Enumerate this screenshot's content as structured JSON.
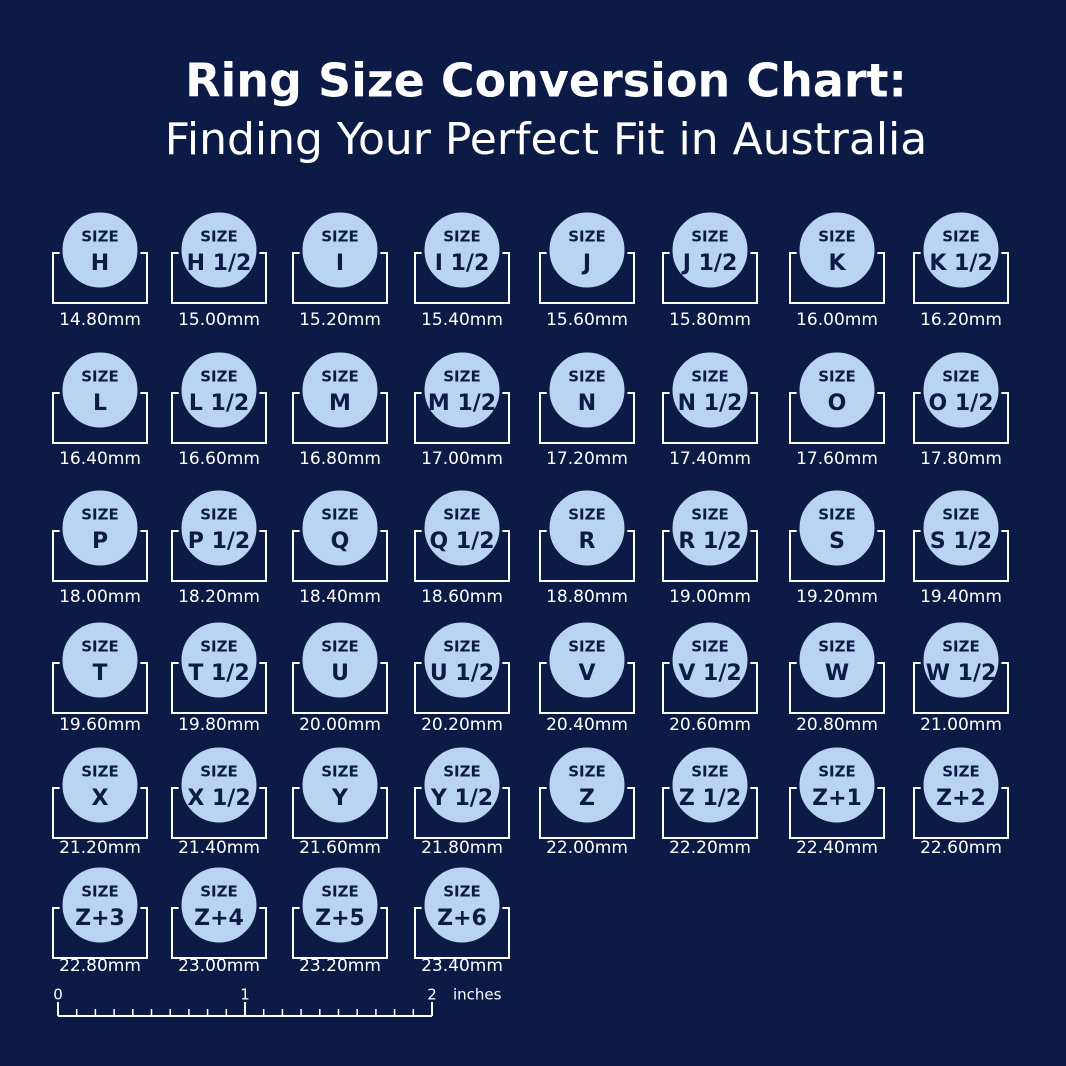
{
  "header": {
    "title": "Ring Size Conversion Chart:",
    "subtitle": "Finding Your Perfect Fit in Australia"
  },
  "size_word": "SIZE",
  "sizes": [
    {
      "size": "H",
      "diameter": "14.80mm"
    },
    {
      "size": "H 1/2",
      "diameter": "15.00mm"
    },
    {
      "size": "I",
      "diameter": "15.20mm"
    },
    {
      "size": "I 1/2",
      "diameter": "15.40mm"
    },
    {
      "size": "J",
      "diameter": "15.60mm"
    },
    {
      "size": "J 1/2",
      "diameter": "15.80mm"
    },
    {
      "size": "K",
      "diameter": "16.00mm"
    },
    {
      "size": "K 1/2",
      "diameter": "16.20mm"
    },
    {
      "size": "L",
      "diameter": "16.40mm"
    },
    {
      "size": "L 1/2",
      "diameter": "16.60mm"
    },
    {
      "size": "M",
      "diameter": "16.80mm"
    },
    {
      "size": "M 1/2",
      "diameter": "17.00mm"
    },
    {
      "size": "N",
      "diameter": "17.20mm"
    },
    {
      "size": "N 1/2",
      "diameter": "17.40mm"
    },
    {
      "size": "O",
      "diameter": "17.60mm"
    },
    {
      "size": "O 1/2",
      "diameter": "17.80mm"
    },
    {
      "size": "P",
      "diameter": "18.00mm"
    },
    {
      "size": "P 1/2",
      "diameter": "18.20mm"
    },
    {
      "size": "Q",
      "diameter": "18.40mm"
    },
    {
      "size": "Q 1/2",
      "diameter": "18.60mm"
    },
    {
      "size": "R",
      "diameter": "18.80mm"
    },
    {
      "size": "R 1/2",
      "diameter": "19.00mm"
    },
    {
      "size": "S",
      "diameter": "19.20mm"
    },
    {
      "size": "S 1/2",
      "diameter": "19.40mm"
    },
    {
      "size": "T",
      "diameter": "19.60mm"
    },
    {
      "size": "T 1/2",
      "diameter": "19.80mm"
    },
    {
      "size": "U",
      "diameter": "20.00mm"
    },
    {
      "size": "U 1/2",
      "diameter": "20.20mm"
    },
    {
      "size": "V",
      "diameter": "20.40mm"
    },
    {
      "size": "V 1/2",
      "diameter": "20.60mm"
    },
    {
      "size": "W",
      "diameter": "20.80mm"
    },
    {
      "size": "W 1/2",
      "diameter": "21.00mm"
    },
    {
      "size": "X",
      "diameter": "21.20mm"
    },
    {
      "size": "X 1/2",
      "diameter": "21.40mm"
    },
    {
      "size": "Y",
      "diameter": "21.60mm"
    },
    {
      "size": "Y 1/2",
      "diameter": "21.80mm"
    },
    {
      "size": "Z",
      "diameter": "22.00mm"
    },
    {
      "size": "Z 1/2",
      "diameter": "22.20mm"
    },
    {
      "size": "Z+1",
      "diameter": "22.40mm"
    },
    {
      "size": "Z+2",
      "diameter": "22.60mm"
    },
    {
      "size": "Z+3",
      "diameter": "22.80mm"
    },
    {
      "size": "Z+4",
      "diameter": "23.00mm"
    },
    {
      "size": "Z+5",
      "diameter": "23.20mm"
    },
    {
      "size": "Z+6",
      "diameter": "23.40mm"
    }
  ],
  "ruler": {
    "labels": [
      "0",
      "1",
      "2"
    ],
    "unit": "inches"
  }
}
